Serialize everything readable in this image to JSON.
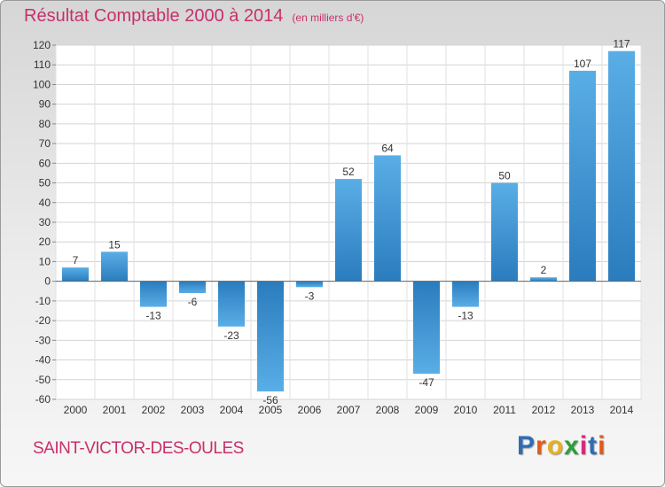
{
  "header": {
    "title": "Résultat Comptable 2000 à 2014",
    "unit": "(en milliers d'€)"
  },
  "footer": {
    "city": "SAINT-VICTOR-DES-OULES",
    "logo": "Proxiti"
  },
  "colors": {
    "title": "#c8306a",
    "bar_light": "#5aaee6",
    "bar_dark": "#2a7cbd",
    "logo_letters": [
      "#2e6db4",
      "#e05a1a",
      "#e8b020",
      "#2e9e3a",
      "#d42a7a",
      "#2e6db4",
      "#e05a1a"
    ]
  },
  "chart_data": {
    "type": "bar",
    "categories": [
      "2000",
      "2001",
      "2002",
      "2003",
      "2004",
      "2005",
      "2006",
      "2007",
      "2008",
      "2009",
      "2010",
      "2011",
      "2012",
      "2013",
      "2014"
    ],
    "values": [
      7,
      15,
      -13,
      -6,
      -23,
      -56,
      -3,
      52,
      64,
      -47,
      -13,
      50,
      2,
      107,
      117
    ],
    "ylim": [
      -60,
      120
    ],
    "yticks": [
      -60,
      -50,
      -40,
      -30,
      -20,
      -10,
      0,
      10,
      20,
      30,
      40,
      50,
      60,
      70,
      80,
      90,
      100,
      110,
      120
    ],
    "grid": true,
    "legend": "none"
  }
}
